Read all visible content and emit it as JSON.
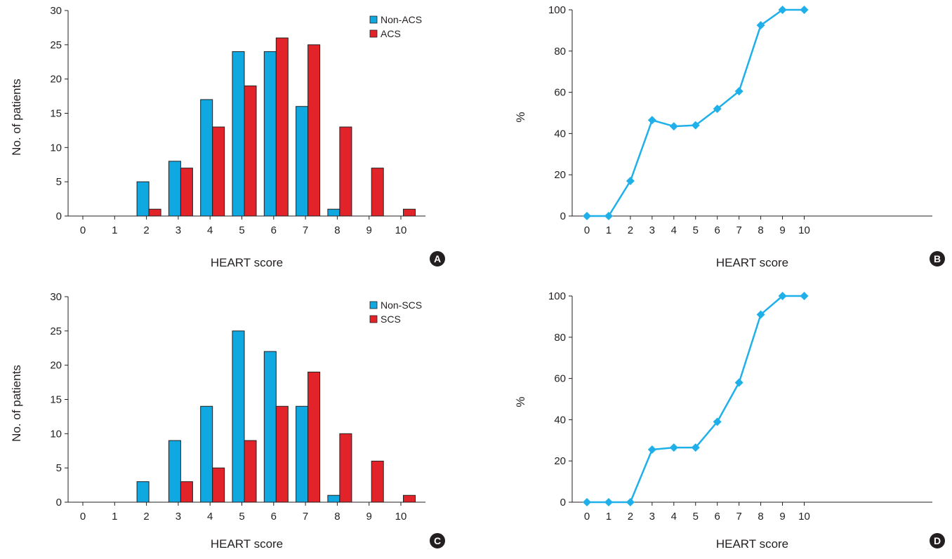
{
  "chart_data": [
    {
      "type": "bar",
      "panel": "A",
      "categories": [
        "0",
        "1",
        "2",
        "3",
        "4",
        "5",
        "6",
        "7",
        "8",
        "9",
        "10"
      ],
      "series": [
        {
          "name": "Non-ACS",
          "color": "#0fa8e0",
          "values": [
            0,
            0,
            5,
            8,
            17,
            24,
            24,
            16,
            1,
            0,
            0
          ]
        },
        {
          "name": "ACS",
          "color": "#e2232a",
          "values": [
            0,
            0,
            1,
            7,
            13,
            19,
            26,
            25,
            13,
            7,
            1
          ]
        }
      ],
      "xlabel": "HEART score",
      "ylabel": "No. of patients",
      "ylim": [
        0,
        30
      ],
      "yticks": [
        "0",
        "5",
        "10",
        "15",
        "20",
        "25",
        "30"
      ],
      "legend": "top-right"
    },
    {
      "type": "line",
      "panel": "B",
      "x": [
        "0",
        "1",
        "2",
        "3",
        "4",
        "5",
        "6",
        "7",
        "8",
        "9",
        "10"
      ],
      "series": [
        {
          "color": "#1fb0ea",
          "values": [
            0,
            0,
            17,
            46.5,
            43.5,
            44,
            52,
            60.5,
            92.5,
            100,
            100
          ]
        }
      ],
      "xlabel": "HEART score",
      "ylabel": "%",
      "ylim": [
        0,
        100
      ],
      "yticks": [
        "0",
        "20",
        "40",
        "60",
        "80",
        "100"
      ]
    },
    {
      "type": "bar",
      "panel": "C",
      "categories": [
        "0",
        "1",
        "2",
        "3",
        "4",
        "5",
        "6",
        "7",
        "8",
        "9",
        "10"
      ],
      "series": [
        {
          "name": "Non-SCS",
          "color": "#0fa8e0",
          "values": [
            0,
            0,
            3,
            9,
            14,
            25,
            22,
            14,
            1,
            0,
            0
          ]
        },
        {
          "name": "SCS",
          "color": "#e2232a",
          "values": [
            0,
            0,
            0,
            3,
            5,
            9,
            14,
            19,
            10,
            6,
            1
          ]
        }
      ],
      "xlabel": "HEART score",
      "ylabel": "No. of patients",
      "ylim": [
        0,
        30
      ],
      "yticks": [
        "0",
        "5",
        "10",
        "15",
        "20",
        "25",
        "30"
      ],
      "legend": "top-right"
    },
    {
      "type": "line",
      "panel": "D",
      "x": [
        "0",
        "1",
        "2",
        "3",
        "4",
        "5",
        "6",
        "7",
        "8",
        "9",
        "10"
      ],
      "series": [
        {
          "color": "#1fb0ea",
          "values": [
            0,
            0,
            0,
            25.5,
            26.5,
            26.5,
            39,
            58,
            91,
            100,
            100
          ]
        }
      ],
      "xlabel": "HEART score",
      "ylabel": "%",
      "ylim": [
        0,
        100
      ],
      "yticks": [
        "0",
        "20",
        "40",
        "60",
        "80",
        "100"
      ]
    }
  ]
}
